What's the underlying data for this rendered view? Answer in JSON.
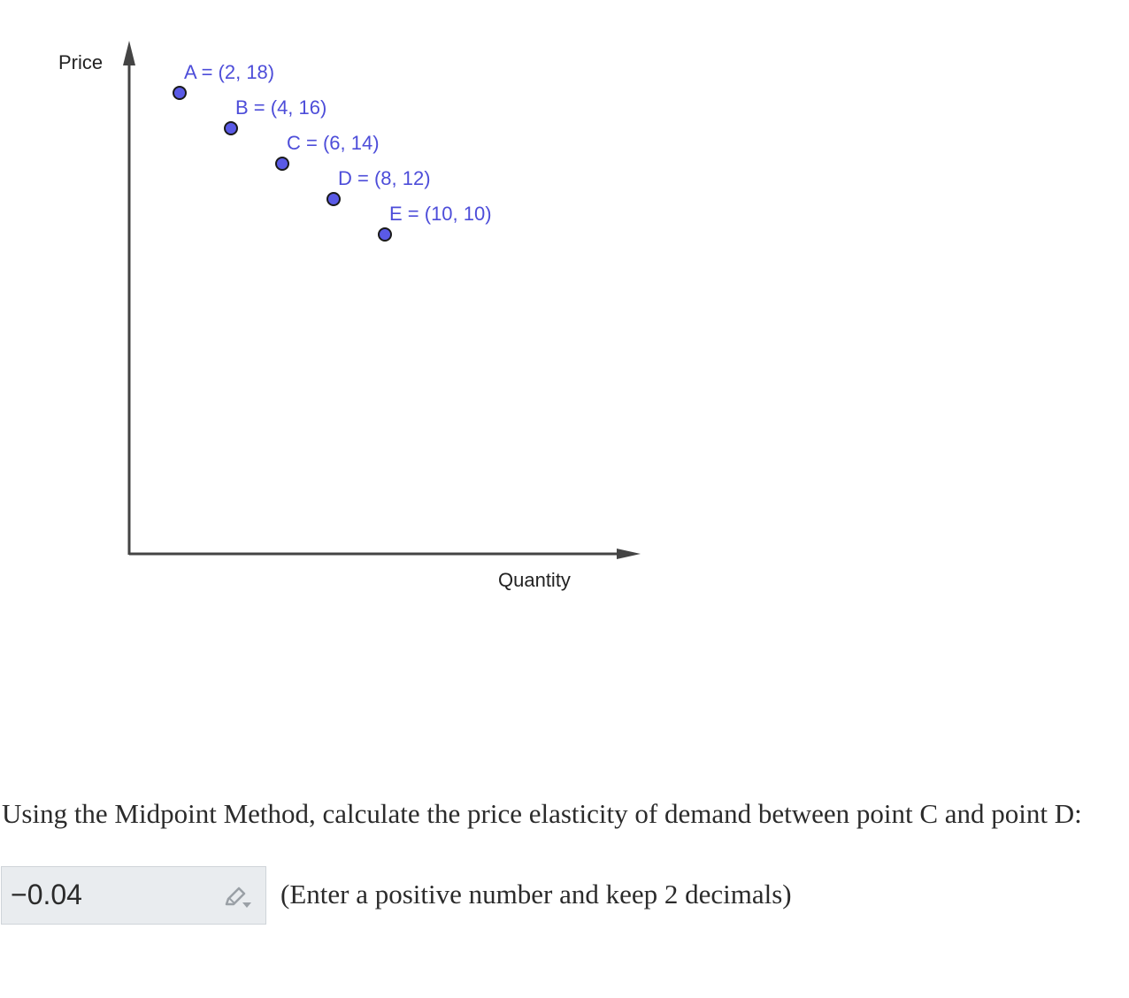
{
  "chart_data": {
    "type": "scatter",
    "xlabel": "Quantity",
    "ylabel": "Price",
    "points": [
      {
        "label": "A = (2, 18)",
        "x": 2,
        "y": 18
      },
      {
        "label": "B = (4, 16)",
        "x": 4,
        "y": 16
      },
      {
        "label": "C = (6, 14)",
        "x": 6,
        "y": 14
      },
      {
        "label": "D = (8, 12)",
        "x": 8,
        "y": 12
      },
      {
        "label": "E = (10, 10)",
        "x": 10,
        "y": 10
      }
    ],
    "grid": false,
    "colors": {
      "point_fill": "#5a5ae6",
      "point_stroke": "#1a1a1a",
      "label": "#4d4dd9",
      "axis": "#444444"
    }
  },
  "question": {
    "text": "Using the Midpoint Method, calculate the price elasticity of demand between point C and point D:"
  },
  "answer": {
    "value": "−0.04",
    "hint": "(Enter a positive number and keep 2 decimals)",
    "icon": "pencil-icon"
  }
}
